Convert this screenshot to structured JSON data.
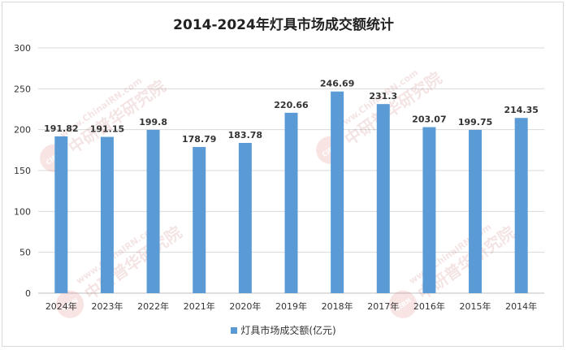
{
  "chart_data": {
    "type": "bar",
    "title": "2014-2024年灯具市场成交额统计",
    "categories": [
      "2024年",
      "2023年",
      "2022年",
      "2021年",
      "2020年",
      "2019年",
      "2018年",
      "2017年",
      "2016年",
      "2015年",
      "2014年"
    ],
    "series": [
      {
        "name": "灯具市场成交额(亿元)",
        "values": [
          191.82,
          191.15,
          199.8,
          178.79,
          183.78,
          220.66,
          246.69,
          231.3,
          203.07,
          199.75,
          214.35
        ]
      }
    ],
    "value_labels": [
      "191.82",
      "191.15",
      "199.8",
      "178.79",
      "183.78",
      "220.66",
      "246.69",
      "231.3",
      "203.07",
      "199.75",
      "214.35"
    ],
    "ylim": [
      0,
      300
    ],
    "yticks": [
      0,
      50,
      100,
      150,
      200,
      250,
      300
    ],
    "grid": true,
    "legend": "bottom",
    "bar_color": "#5b9bd5"
  },
  "watermark": {
    "text": "www.ChinaIRN.com",
    "brand": "中研普华研究院",
    "logo": "CIRN"
  }
}
